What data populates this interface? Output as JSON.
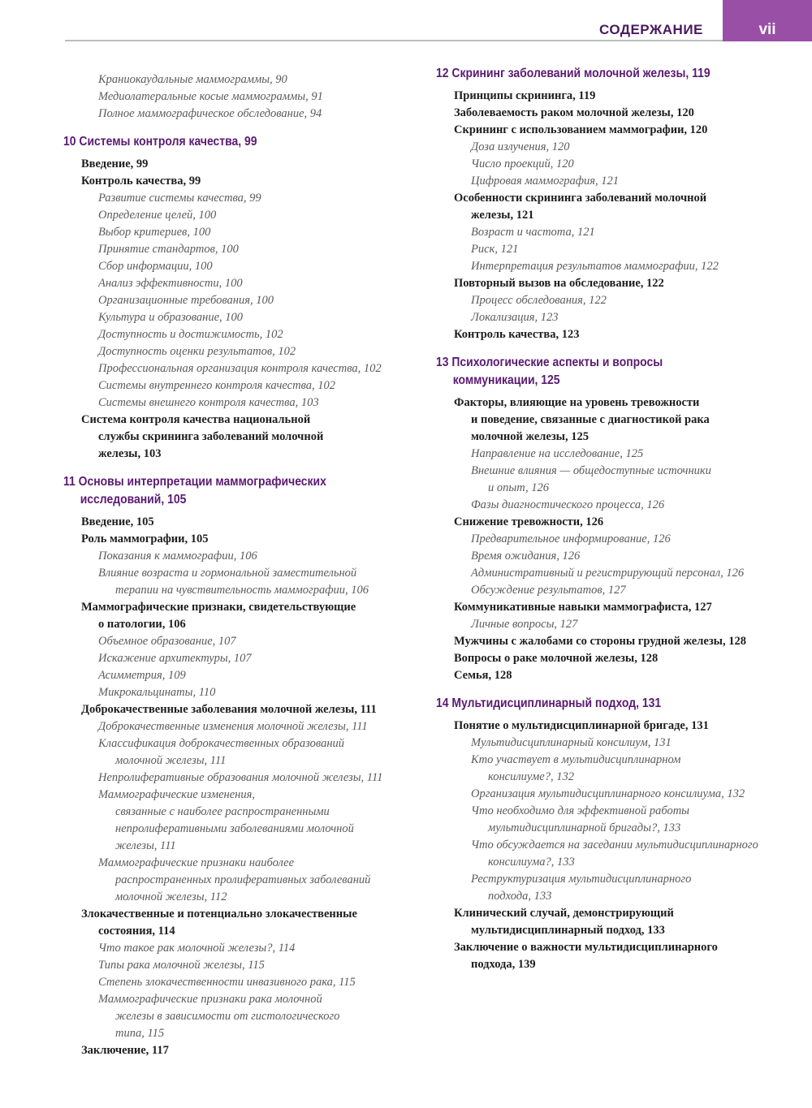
{
  "header": {
    "title": "СОДЕРЖАНИЕ",
    "page": "vii",
    "accent": "#9a4fa6"
  },
  "left": [
    {
      "t": "e",
      "level": 2,
      "lines": [
        "Краниокаудальные маммограммы, 90"
      ]
    },
    {
      "t": "e",
      "level": 2,
      "lines": [
        "Медиолатеральные косые маммограммы, 91"
      ]
    },
    {
      "t": "e",
      "level": 2,
      "lines": [
        "Полное маммографическое обследование, 94"
      ]
    },
    {
      "t": "h",
      "lines": [
        "10 Системы контроля качества, 99"
      ]
    },
    {
      "t": "e",
      "level": 1,
      "lines": [
        "Введение, 99"
      ]
    },
    {
      "t": "e",
      "level": 1,
      "lines": [
        "Контроль качества, 99"
      ]
    },
    {
      "t": "e",
      "level": 2,
      "lines": [
        "Развитие системы качества, 99"
      ]
    },
    {
      "t": "e",
      "level": 2,
      "lines": [
        "Определение целей, 100"
      ]
    },
    {
      "t": "e",
      "level": 2,
      "lines": [
        "Выбор критериев, 100"
      ]
    },
    {
      "t": "e",
      "level": 2,
      "lines": [
        "Принятие стандартов, 100"
      ]
    },
    {
      "t": "e",
      "level": 2,
      "lines": [
        "Сбор информации, 100"
      ]
    },
    {
      "t": "e",
      "level": 2,
      "lines": [
        "Анализ эффективности, 100"
      ]
    },
    {
      "t": "e",
      "level": 2,
      "lines": [
        "Организационные требования, 100"
      ]
    },
    {
      "t": "e",
      "level": 2,
      "lines": [
        "Культура и образование, 100"
      ]
    },
    {
      "t": "e",
      "level": 2,
      "lines": [
        "Доступность и достижимость, 102"
      ]
    },
    {
      "t": "e",
      "level": 2,
      "lines": [
        "Доступность оценки результатов, 102"
      ]
    },
    {
      "t": "e",
      "level": 2,
      "lines": [
        "Профессиональная организация контроля качества, 102"
      ]
    },
    {
      "t": "e",
      "level": 2,
      "lines": [
        "Системы внутреннего контроля качества, 102"
      ]
    },
    {
      "t": "e",
      "level": 2,
      "lines": [
        "Системы внешнего контроля качества, 103"
      ]
    },
    {
      "t": "e",
      "level": 1,
      "lines": [
        "Система контроля качества национальной",
        "службы скрининга заболеваний молочной",
        "железы, 103"
      ]
    },
    {
      "t": "h",
      "lines": [
        "11 Основы интерпретации маммографических",
        "исследований, 105"
      ]
    },
    {
      "t": "e",
      "level": 1,
      "lines": [
        "Введение, 105"
      ]
    },
    {
      "t": "e",
      "level": 1,
      "lines": [
        "Роль маммографии, 105"
      ]
    },
    {
      "t": "e",
      "level": 2,
      "lines": [
        "Показания к маммографии, 106"
      ]
    },
    {
      "t": "e",
      "level": 2,
      "lines": [
        "Влияние возраста и гормональной заместительной",
        "терапии на чувствительность маммографии, 106"
      ]
    },
    {
      "t": "e",
      "level": 1,
      "lines": [
        "Маммографические признаки, свидетельствующие",
        "о патологии, 106"
      ]
    },
    {
      "t": "e",
      "level": 2,
      "lines": [
        "Объемное образование, 107"
      ]
    },
    {
      "t": "e",
      "level": 2,
      "lines": [
        "Искажение архитектуры, 107"
      ]
    },
    {
      "t": "e",
      "level": 2,
      "lines": [
        "Асимметрия, 109"
      ]
    },
    {
      "t": "e",
      "level": 2,
      "lines": [
        "Микрокальцинаты, 110"
      ]
    },
    {
      "t": "e",
      "level": 1,
      "lines": [
        "Доброкачественные заболевания молочной железы, 111"
      ]
    },
    {
      "t": "e",
      "level": 2,
      "lines": [
        "Доброкачественные изменения молочной железы, 111"
      ]
    },
    {
      "t": "e",
      "level": 2,
      "lines": [
        "Классификация доброкачественных образований",
        "молочной железы, 111"
      ]
    },
    {
      "t": "e",
      "level": 2,
      "lines": [
        "Непролиферативные образования молочной железы, 111"
      ]
    },
    {
      "t": "e",
      "level": 2,
      "lines": [
        "Маммографические изменения,",
        "связанные с наиболее распространенными",
        "непролиферативными заболеваниями молочной",
        "железы, 111"
      ]
    },
    {
      "t": "e",
      "level": 2,
      "lines": [
        "Маммографические признаки наиболее",
        "распространенных пролиферативных заболеваний",
        "молочной железы, 112"
      ]
    },
    {
      "t": "e",
      "level": 1,
      "lines": [
        "Злокачественные и потенциально злокачественные",
        "состояния, 114"
      ]
    },
    {
      "t": "e",
      "level": 2,
      "lines": [
        "Что такое рак молочной железы?, 114"
      ]
    },
    {
      "t": "e",
      "level": 2,
      "lines": [
        "Типы рака молочной железы, 115"
      ]
    },
    {
      "t": "e",
      "level": 2,
      "lines": [
        "Степень злокачественности инвазивного рака, 115"
      ]
    },
    {
      "t": "e",
      "level": 2,
      "lines": [
        "Маммографические признаки рака молочной",
        "железы в зависимости от гистологического",
        "типа, 115"
      ]
    },
    {
      "t": "e",
      "level": 1,
      "lines": [
        "Заключение, 117"
      ]
    }
  ],
  "right": [
    {
      "t": "h",
      "lines": [
        "12 Скрининг заболеваний молочной железы, 119"
      ]
    },
    {
      "t": "e",
      "level": 1,
      "lines": [
        "Принципы скрининга, 119"
      ]
    },
    {
      "t": "e",
      "level": 1,
      "lines": [
        "Заболеваемость раком молочной железы, 120"
      ]
    },
    {
      "t": "e",
      "level": 1,
      "lines": [
        "Скрининг с использованием маммографии, 120"
      ]
    },
    {
      "t": "e",
      "level": 2,
      "lines": [
        "Доза излучения, 120"
      ]
    },
    {
      "t": "e",
      "level": 2,
      "lines": [
        "Число проекций, 120"
      ]
    },
    {
      "t": "e",
      "level": 2,
      "lines": [
        "Цифровая маммография, 121"
      ]
    },
    {
      "t": "e",
      "level": 1,
      "lines": [
        "Особенности скрининга заболеваний молочной",
        "железы, 121"
      ]
    },
    {
      "t": "e",
      "level": 2,
      "lines": [
        "Возраст и частота, 121"
      ]
    },
    {
      "t": "e",
      "level": 2,
      "lines": [
        "Риск, 121"
      ]
    },
    {
      "t": "e",
      "level": 2,
      "lines": [
        "Интерпретация результатов маммографии, 122"
      ]
    },
    {
      "t": "e",
      "level": 1,
      "lines": [
        "Повторный вызов на обследование, 122"
      ]
    },
    {
      "t": "e",
      "level": 2,
      "lines": [
        "Процесс обследования, 122"
      ]
    },
    {
      "t": "e",
      "level": 2,
      "lines": [
        "Локализация, 123"
      ]
    },
    {
      "t": "e",
      "level": 1,
      "lines": [
        "Контроль качества, 123"
      ]
    },
    {
      "t": "h",
      "lines": [
        "13 Психологические аспекты и вопросы",
        "коммуникации, 125"
      ]
    },
    {
      "t": "e",
      "level": 1,
      "lines": [
        "Факторы, влияющие на уровень тревожности",
        "и поведение, связанные с диагностикой рака",
        "молочной железы, 125"
      ]
    },
    {
      "t": "e",
      "level": 2,
      "lines": [
        "Направление на исследование, 125"
      ]
    },
    {
      "t": "e",
      "level": 2,
      "lines": [
        "Внешние влияния — общедоступные источники",
        "и опыт, 126"
      ]
    },
    {
      "t": "e",
      "level": 2,
      "lines": [
        "Фазы диагностического процесса, 126"
      ]
    },
    {
      "t": "e",
      "level": 1,
      "lines": [
        "Снижение тревожности, 126"
      ]
    },
    {
      "t": "e",
      "level": 2,
      "lines": [
        "Предварительное информирование, 126"
      ]
    },
    {
      "t": "e",
      "level": 2,
      "lines": [
        "Время ожидания, 126"
      ]
    },
    {
      "t": "e",
      "level": 2,
      "lines": [
        "Административный и регистрирующий персонал, 126"
      ]
    },
    {
      "t": "e",
      "level": 2,
      "lines": [
        "Обсуждение результатов, 127"
      ]
    },
    {
      "t": "e",
      "level": 1,
      "lines": [
        "Коммуникативные навыки маммографиста, 127"
      ]
    },
    {
      "t": "e",
      "level": 2,
      "lines": [
        "Личные вопросы, 127"
      ]
    },
    {
      "t": "e",
      "level": 1,
      "lines": [
        "Мужчины с жалобами со стороны грудной железы, 128"
      ]
    },
    {
      "t": "e",
      "level": 1,
      "lines": [
        "Вопросы о раке молочной железы, 128"
      ]
    },
    {
      "t": "e",
      "level": 1,
      "lines": [
        "Семья, 128"
      ]
    },
    {
      "t": "h",
      "lines": [
        "14  Мультидисциплинарный подход, 131"
      ]
    },
    {
      "t": "e",
      "level": 1,
      "lines": [
        "Понятие о мультидисциплинарной бригаде, 131"
      ]
    },
    {
      "t": "e",
      "level": 2,
      "lines": [
        "Мультидисциплинарный консилиум, 131"
      ]
    },
    {
      "t": "e",
      "level": 2,
      "lines": [
        "Кто участвует в мультидисциплинарном",
        "консилиуме?, 132"
      ]
    },
    {
      "t": "e",
      "level": 2,
      "lines": [
        "Организация мультидисциплинарного консилиума, 132"
      ]
    },
    {
      "t": "e",
      "level": 2,
      "lines": [
        "Что необходимо для эффективной работы",
        "мультидисциплинарной бригады?, 133"
      ]
    },
    {
      "t": "e",
      "level": 2,
      "lines": [
        "Что обсуждается на заседании мультидисциплинарного",
        "консилиума?, 133"
      ]
    },
    {
      "t": "e",
      "level": 2,
      "lines": [
        "Реструктуризация мультидисциплинарного",
        "подхода, 133"
      ]
    },
    {
      "t": "e",
      "level": 1,
      "lines": [
        "Клинический случай, демонстрирующий",
        "мультидисциплинарный подход, 133"
      ]
    },
    {
      "t": "e",
      "level": 1,
      "lines": [
        "Заключение о важности мультидисциплинарного",
        "подхода, 139"
      ]
    }
  ]
}
